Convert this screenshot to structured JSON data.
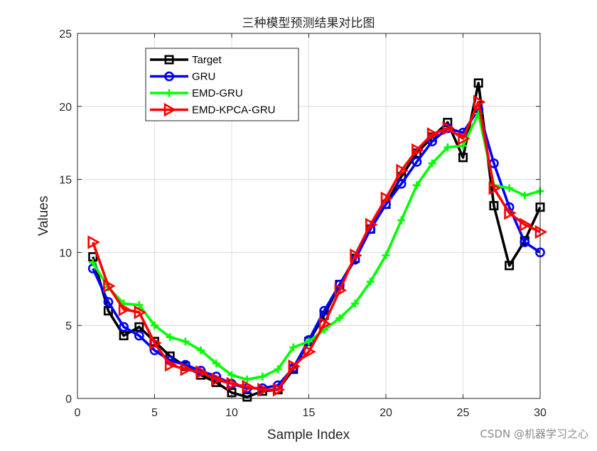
{
  "chart_data": {
    "type": "line",
    "title": "三种模型预测结果对比图",
    "xlabel": "Sample Index",
    "ylabel": "Values",
    "xlim": [
      0,
      30
    ],
    "ylim": [
      0,
      25
    ],
    "xticks": [
      0,
      5,
      10,
      15,
      20,
      25,
      30
    ],
    "yticks": [
      0,
      5,
      10,
      15,
      20,
      25
    ],
    "grid": true,
    "legend_position": "top-left",
    "x": [
      1,
      2,
      3,
      4,
      5,
      6,
      7,
      8,
      9,
      10,
      11,
      12,
      13,
      14,
      15,
      16,
      17,
      18,
      19,
      20,
      21,
      22,
      23,
      24,
      25,
      26,
      27,
      28,
      29,
      30
    ],
    "series": [
      {
        "name": "Target",
        "color": "#000000",
        "marker": "square",
        "values": [
          9.7,
          6.0,
          4.3,
          4.9,
          3.9,
          2.9,
          2.2,
          1.6,
          1.1,
          0.4,
          0.1,
          0.5,
          0.6,
          2.0,
          3.9,
          5.7,
          7.8,
          9.6,
          11.6,
          13.3,
          15.2,
          16.8,
          17.9,
          18.9,
          16.5,
          21.6,
          13.2,
          9.1,
          10.8,
          13.1
        ]
      },
      {
        "name": "GRU",
        "color": "#0000ff",
        "marker": "circle",
        "values": [
          8.9,
          6.6,
          4.9,
          4.3,
          3.3,
          2.6,
          2.3,
          1.9,
          1.5,
          1.0,
          0.7,
          0.7,
          0.9,
          2.1,
          4.0,
          6.0,
          7.8,
          9.5,
          11.6,
          13.3,
          14.7,
          16.2,
          17.6,
          18.5,
          18.2,
          19.8,
          16.1,
          13.1,
          10.7,
          10.0
        ]
      },
      {
        "name": "EMD-GRU",
        "color": "#00ff00",
        "marker": "plus",
        "values": [
          9.3,
          7.6,
          6.5,
          6.4,
          5.0,
          4.2,
          3.9,
          3.3,
          2.4,
          1.6,
          1.3,
          1.5,
          2.0,
          3.5,
          3.9,
          4.7,
          5.5,
          6.5,
          8.0,
          9.8,
          12.2,
          14.6,
          16.1,
          17.2,
          17.3,
          19.5,
          14.6,
          14.4,
          13.9,
          14.2
        ]
      },
      {
        "name": "EMD-KPCA-GRU",
        "color": "#ff0000",
        "marker": "triangle-right",
        "values": [
          10.7,
          7.7,
          6.1,
          5.9,
          3.8,
          2.3,
          2.0,
          1.8,
          1.3,
          1.0,
          0.8,
          0.6,
          0.6,
          2.2,
          3.2,
          5.1,
          7.4,
          9.8,
          11.9,
          13.7,
          15.6,
          17.0,
          18.1,
          18.5,
          17.8,
          20.3,
          14.4,
          12.7,
          11.9,
          11.4
        ]
      }
    ]
  },
  "watermark": "CSDN @机器学习之心"
}
